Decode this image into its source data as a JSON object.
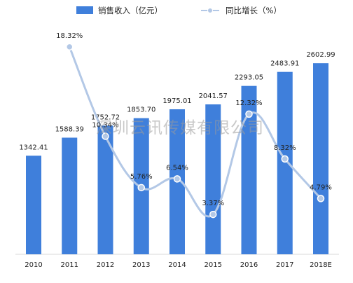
{
  "chart_data": {
    "type": "bar",
    "categories": [
      "2010",
      "2011",
      "2012",
      "2013",
      "2014",
      "2015",
      "2016",
      "2017",
      "2018E"
    ],
    "series": [
      {
        "name": "销售收入（亿元）",
        "type": "bar",
        "axis": "left",
        "color": "#3f7fdb",
        "values": [
          1342.41,
          1588.39,
          1752.72,
          1853.7,
          1975.01,
          2041.57,
          2293.05,
          2483.91,
          2602.99
        ],
        "labels": [
          "1342.41",
          "1588.39",
          "1752.72",
          "1853.70",
          "1975.01",
          "2041.57",
          "2293.05",
          "2483.91",
          "2602.99"
        ]
      },
      {
        "name": "同比增长（%）",
        "type": "line",
        "axis": "right",
        "color": "#b3c8e6",
        "smooth": true,
        "values": [
          null,
          18.32,
          10.34,
          5.76,
          6.54,
          3.37,
          12.32,
          8.32,
          4.79
        ],
        "labels": [
          "",
          "18.32%",
          "10.34%",
          "5.76%",
          "6.54%",
          "3.37%",
          "12.32%",
          "8.32%",
          "4.79%"
        ]
      }
    ],
    "ylim_left": [
      0,
      2700
    ],
    "ylim_right": [
      0,
      20
    ],
    "grid": false,
    "legend": "top",
    "watermark": "深圳云讯传媒有限公司"
  }
}
